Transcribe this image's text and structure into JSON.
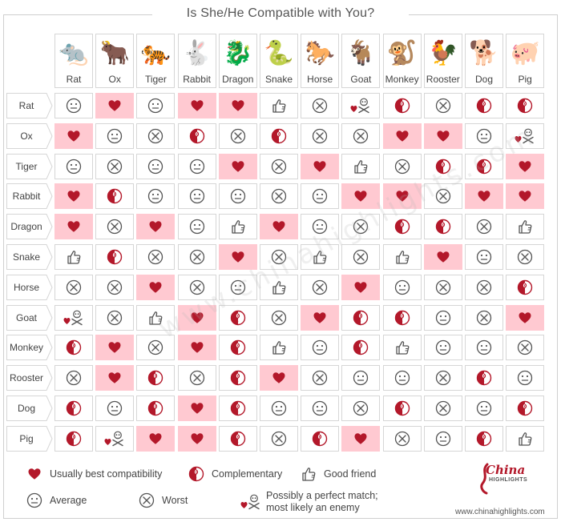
{
  "title": "Is She/He Compatible with You?",
  "animals": [
    "Rat",
    "Ox",
    "Tiger",
    "Rabbit",
    "Dragon",
    "Snake",
    "Horse",
    "Goat",
    "Monkey",
    "Rooster",
    "Dog",
    "Pig"
  ],
  "animal_glyphs": [
    "🐀",
    "🐂",
    "🐅",
    "🐇",
    "🐉",
    "🐍",
    "🐎",
    "🐐",
    "🐒",
    "🐓",
    "🐕",
    "🐖"
  ],
  "colors": {
    "accent": "#b3182a",
    "highlight": "#ffc9d1",
    "border": "#d6d6d6",
    "icon_gray": "#555555"
  },
  "grid": [
    [
      "average",
      "best",
      "average",
      "best",
      "best",
      "good",
      "worst",
      "perfect-enemy",
      "complementary",
      "worst",
      "complementary",
      "complementary"
    ],
    [
      "best",
      "average",
      "worst",
      "complementary",
      "worst",
      "complementary",
      "worst",
      "worst",
      "best",
      "best",
      "average",
      "perfect-enemy"
    ],
    [
      "average",
      "worst",
      "average",
      "average",
      "best",
      "worst",
      "best",
      "good",
      "worst",
      "complementary",
      "complementary",
      "best"
    ],
    [
      "best",
      "complementary",
      "average",
      "average",
      "average",
      "worst",
      "average",
      "best",
      "best",
      "worst",
      "best",
      "best"
    ],
    [
      "best",
      "worst",
      "best",
      "average",
      "good",
      "best",
      "average",
      "worst",
      "complementary",
      "complementary",
      "worst",
      "good"
    ],
    [
      "good",
      "complementary",
      "worst",
      "worst",
      "best",
      "worst",
      "good",
      "worst",
      "good",
      "best",
      "average",
      "worst"
    ],
    [
      "worst",
      "worst",
      "best",
      "worst",
      "average",
      "good",
      "worst",
      "best",
      "average",
      "worst",
      "worst",
      "complementary"
    ],
    [
      "perfect-enemy",
      "worst",
      "good",
      "best",
      "complementary",
      "worst",
      "best",
      "complementary",
      "complementary",
      "average",
      "worst",
      "best"
    ],
    [
      "complementary",
      "best",
      "worst",
      "best",
      "complementary",
      "good",
      "average",
      "complementary",
      "good",
      "average",
      "average",
      "worst"
    ],
    [
      "worst",
      "best",
      "complementary",
      "worst",
      "complementary",
      "best",
      "worst",
      "average",
      "average",
      "worst",
      "complementary",
      "average"
    ],
    [
      "complementary",
      "average",
      "complementary",
      "best",
      "complementary",
      "average",
      "average",
      "worst",
      "complementary",
      "worst",
      "average",
      "complementary"
    ],
    [
      "complementary",
      "perfect-enemy",
      "best",
      "best",
      "complementary",
      "worst",
      "complementary",
      "best",
      "worst",
      "average",
      "complementary",
      "good"
    ]
  ],
  "legend": {
    "best": "Usually best compatibility",
    "complementary": "Complementary",
    "good": "Good friend",
    "average": "Average",
    "worst": "Worst",
    "perfect_enemy_line1": "Possibly a perfect match;",
    "perfect_enemy_line2": "most likely an enemy"
  },
  "brand": {
    "logo": "China",
    "logo_sub": "HIGHLIGHTS",
    "url": "www.chinahighlights.com"
  },
  "watermark": "www.chinahighlights.com"
}
